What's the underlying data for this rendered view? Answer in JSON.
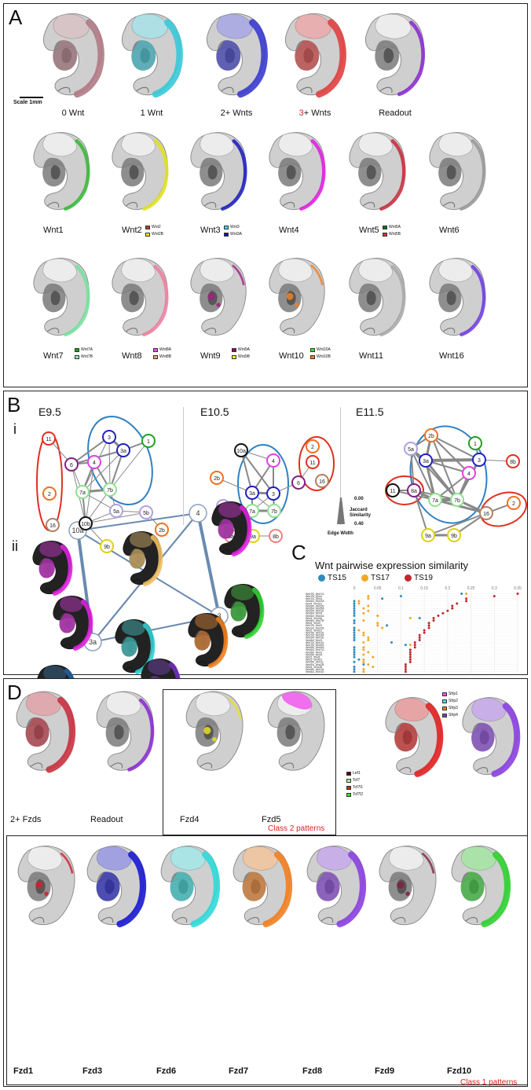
{
  "panel_a": {
    "letter": "A",
    "scale_label": "Scale 1mm",
    "row1": [
      {
        "label": "0 Wnt",
        "color": "#b07a85"
      },
      {
        "label": "1 Wnt",
        "color": "#38c8d8"
      },
      {
        "label": "2+ Wnts",
        "color": "#3a3ad0"
      },
      {
        "label_prefix": "3",
        "label_suffix": "+ Wnts",
        "color": "#e04040"
      },
      {
        "label": "Readout",
        "color": "#8a2ed0"
      }
    ],
    "row2": [
      {
        "label": "Wnt1",
        "color": "#3ab83a",
        "legend": []
      },
      {
        "label": "Wnt2",
        "color": "#e0e020",
        "legend": [
          {
            "name": "Wnt2",
            "color": "#c0401a"
          },
          {
            "name": "Wnt2B",
            "color": "#f0f020"
          }
        ]
      },
      {
        "label": "Wnt3",
        "color": "#2020c0",
        "legend": [
          {
            "name": "Wnt3",
            "color": "#40e0e0"
          },
          {
            "name": "Wnt3A",
            "color": "#1010b0"
          }
        ]
      },
      {
        "label": "Wnt4",
        "color": "#e020e0",
        "legend": []
      },
      {
        "label": "Wnt5",
        "color": "#c83040",
        "legend": [
          {
            "name": "Wnt5A",
            "color": "#1e6a2a"
          },
          {
            "name": "Wnt5B",
            "color": "#e03030"
          }
        ]
      },
      {
        "label": "Wnt6",
        "color": "#999999",
        "legend": []
      }
    ],
    "row3": [
      {
        "label": "Wnt7",
        "color": "#78e0a0",
        "legend": [
          {
            "name": "Wnt7A",
            "color": "#20a020"
          },
          {
            "name": "Wnt7B",
            "color": "#90f0b0"
          }
        ]
      },
      {
        "label": "Wnt8",
        "color": "#f080a0",
        "legend": [
          {
            "name": "Wnt8A",
            "color": "#f050f0"
          },
          {
            "name": "Wnt8B",
            "color": "#f0a070"
          }
        ]
      },
      {
        "label": "Wnt9",
        "color": "#a02080",
        "legend": [
          {
            "name": "Wnt9A",
            "color": "#801060"
          },
          {
            "name": "Wnt9B",
            "color": "#f0f020"
          }
        ]
      },
      {
        "label": "Wnt10",
        "color": "#f08020",
        "legend": [
          {
            "name": "Wnt10A",
            "color": "#40e040"
          },
          {
            "name": "Wnt10B",
            "color": "#f08020"
          }
        ]
      },
      {
        "label": "Wnt11",
        "color": "#aaaaaa",
        "legend": []
      },
      {
        "label": "Wnt16",
        "color": "#7040e0",
        "legend": []
      }
    ]
  },
  "panel_b": {
    "letter": "B",
    "sub_i": "i",
    "sub_ii": "ii",
    "stages": [
      "E9.5",
      "E10.5",
      "E11.5"
    ],
    "edge_legend": {
      "top": "0.00",
      "title_line1": "Jaccard",
      "title_line2": "Similarity",
      "bottom": "0.40",
      "axis": "Edge Width"
    },
    "nodes_e95": [
      "11",
      "6",
      "4",
      "1",
      "3",
      "3a",
      "2",
      "7a",
      "7b",
      "16",
      "10b",
      "5a",
      "5b",
      "2b",
      "9b"
    ],
    "nodes_e105": [
      "10a",
      "4",
      "2",
      "11",
      "2b",
      "3a",
      "3",
      "6",
      "16",
      "5a",
      "7a",
      "7b",
      "8a",
      "9a",
      "8b"
    ],
    "nodes_e115": [
      "2b",
      "5a",
      "1",
      "3a",
      "3",
      "8b",
      "4",
      "11",
      "8a",
      "7a",
      "7b",
      "16",
      "2",
      "9a",
      "9b"
    ],
    "network_ii_nodes": [
      "10a",
      "4",
      "3a",
      "3"
    ]
  },
  "panel_c": {
    "letter": "C",
    "title": "Wnt pairwise expression similarity",
    "legend": [
      {
        "name": "TS15",
        "color": "#2b8cbe"
      },
      {
        "name": "TS17",
        "color": "#f5a623"
      },
      {
        "name": "TS19",
        "color": "#c0272d"
      }
    ],
    "chart_data": {
      "type": "scatter",
      "title": "Wnt pairwise expression similarity",
      "xlim": [
        0,
        0.35
      ],
      "x_ticks": [
        "0",
        "0.05",
        "0.1",
        "0.15",
        "0.2",
        "0.25",
        "0.3",
        "0.35"
      ],
      "categories": [
        "Wnt7B_Wnt7A",
        "Wnt7B_Wnt4",
        "Wnt7A_Wnt4",
        "Wnt8A_Wnt3A",
        "Wnt4_Wnt16",
        "Wnt8A_Wnt2B",
        "Wnt8A_Wnt5A",
        "Wnt9A_Wnt16",
        "Wnt8A_Wnt4",
        "Wnt5A_Wnt3A",
        "Wnt4_Wnt3A",
        "Wnt8A_Wnt7B",
        "Wnt4_Wnt3",
        "Wnt7B_Wnt3",
        "Wnt3A_Wnt2B",
        "Wnt2_Wnt16",
        "Wnt7B_Wnt16",
        "Wnt7B_Wnt3A",
        "Wnt5A_Wnt16",
        "Wnt8A_Wnt3",
        "Wnt7A_Wnt16",
        "Wnt7B_Wnt9A",
        "Wnt9B_Wnt9A",
        "Wnt8A_Wnt7A",
        "Wnt8B_Wnt3",
        "Wnt9A_Wnt4",
        "Wnt3_Wnt1",
        "Wnt3_Wnt16",
        "Wnt5A_Wnt11",
        "Wnt5A_Wnt2B",
        "Wnt4_Wnt2B",
        "Wnt9B_Wnt16",
        "Wnt8A_Wnt16"
      ],
      "series": [
        {
          "name": "TS15",
          "values": [
            0.23,
            0.1,
            0.06,
            0.0,
            0.0,
            0.0,
            0.0,
            0.0,
            0.0,
            0.0,
            0.14,
            0.0,
            0.0,
            0.07,
            0.0,
            0.0,
            0.0,
            0.0,
            0.0,
            0.0,
            0.08,
            0.11,
            0.0,
            0.0,
            0.0,
            0.0,
            0.0,
            0.01,
            0.0,
            0.02,
            0.0,
            0.0,
            0.0
          ]
        },
        {
          "name": "TS17",
          "values": [
            0.24,
            0.03,
            0.03,
            0.01,
            0.01,
            0.03,
            0.02,
            0.03,
            0.02,
            0.05,
            0.12,
            0.02,
            0.05,
            0.05,
            0.06,
            0.01,
            0.02,
            0.02,
            0.03,
            0.03,
            0.02,
            0.12,
            0.02,
            0.02,
            0.03,
            0.02,
            0.04,
            0.02,
            0.02,
            0.03,
            0.04,
            0.02,
            0.02
          ]
        },
        {
          "name": "TS19",
          "values": [
            0.35,
            0.3,
            0.24,
            0.24,
            0.22,
            0.21,
            0.21,
            0.2,
            0.19,
            0.18,
            0.17,
            0.17,
            0.16,
            0.16,
            0.16,
            0.15,
            0.15,
            0.14,
            0.14,
            0.14,
            0.13,
            0.13,
            0.13,
            0.12,
            0.12,
            0.12,
            0.12,
            0.12,
            0.12,
            0.11,
            0.11,
            0.11,
            0.11
          ]
        }
      ]
    }
  },
  "panel_d": {
    "letter": "D",
    "top": [
      {
        "label": "2+ Fzds",
        "color": "#c83040"
      },
      {
        "label": "Readout",
        "color": "#8a2ed0"
      },
      {
        "label": "Fzd4",
        "color": "#e8e020"
      },
      {
        "label": "Fzd5",
        "color": "#f050f0"
      }
    ],
    "class2": "Class 2 patterns",
    "class1": "Class 1 patterns",
    "lef_legend": [
      {
        "name": "Lef1",
        "color": "#4a0a14"
      },
      {
        "name": "Tcf7",
        "color": "#b0f0a0"
      },
      {
        "name": "Tcf7l1",
        "color": "#e01a1a"
      },
      {
        "name": "Tcf7l2",
        "color": "#40e020"
      }
    ],
    "sfrp_legend": [
      {
        "name": "Sfrp1",
        "color": "#f050f0"
      },
      {
        "name": "Sfrp2",
        "color": "#40e0e0"
      },
      {
        "name": "Sfrp3",
        "color": "#f08020"
      },
      {
        "name": "Sfrp4",
        "color": "#7040e0"
      }
    ],
    "bottom": [
      {
        "label": "Fzd1",
        "color": "#d02030"
      },
      {
        "label": "Fzd3",
        "color": "#1818d0"
      },
      {
        "label": "Fzd6",
        "color": "#30d8d8"
      },
      {
        "label": "Fzd7",
        "color": "#f08020"
      },
      {
        "label": "Fzd8",
        "color": "#8a40e0"
      },
      {
        "label": "Fzd9",
        "color": "#802040"
      },
      {
        "label": "Fzd10",
        "color": "#30d030"
      }
    ]
  }
}
